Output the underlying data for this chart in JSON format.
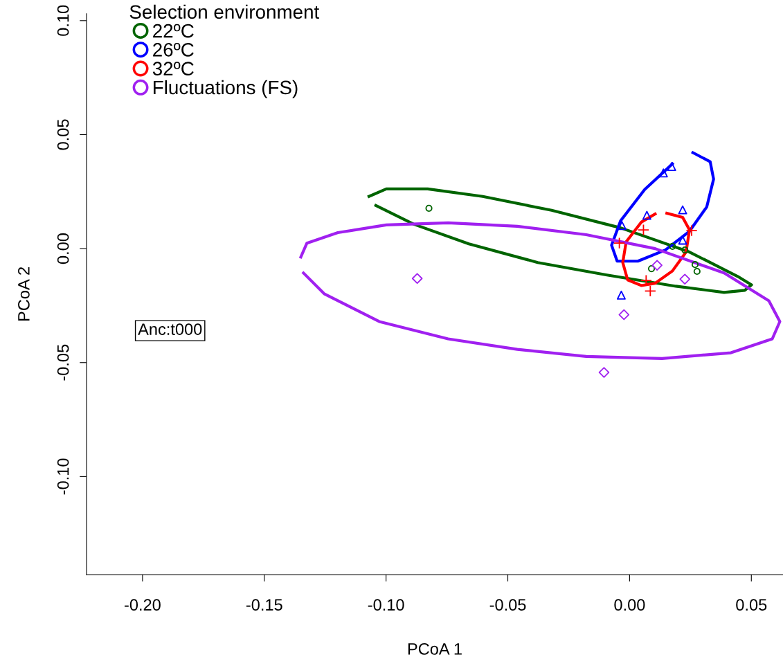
{
  "chart_data": {
    "type": "scatter",
    "xlabel": "PCoA 1",
    "ylabel": "PCoA 2",
    "legend_title": "Selection environment",
    "legend": "top left",
    "grid": false,
    "xlim": [
      -0.223,
      0.063
    ],
    "ylim": [
      -0.143,
      0.103
    ],
    "xticks": [
      {
        "value": -0.2,
        "label": "-0.20"
      },
      {
        "value": -0.15,
        "label": "-0.15"
      },
      {
        "value": -0.1,
        "label": "-0.10"
      },
      {
        "value": -0.05,
        "label": "-0.05"
      },
      {
        "value": 0,
        "label": "0.00"
      },
      {
        "value": 0.05,
        "label": "0.05"
      }
    ],
    "yticks": [
      {
        "value": -0.1,
        "label": "-0.10"
      },
      {
        "value": -0.05,
        "label": "-0.05"
      },
      {
        "value": 0,
        "label": "0.00"
      },
      {
        "value": 0.05,
        "label": "0.05"
      },
      {
        "value": 0.1,
        "label": "0.10"
      }
    ],
    "annotations": [
      "Anc:t000"
    ],
    "series": [
      {
        "name": "22ºC",
        "color": "#006400",
        "marker": "circle",
        "x": [
          -0.0824,
          0.0176,
          0.0227,
          0.0269,
          0.0277,
          0.009
        ],
        "values": [
          0.0177,
          0.001,
          -0.0006,
          -0.007,
          -0.01,
          -0.0088
        ]
      },
      {
        "name": "26ºC",
        "color": "#0000ff",
        "marker": "triangle",
        "x": [
          0.0173,
          0.0139,
          0.0218,
          0.0071,
          -0.0031,
          0.0218,
          -0.0034
        ],
        "values": [
          0.036,
          0.0332,
          0.017,
          0.0146,
          0.0101,
          0.0037,
          -0.0204
        ]
      },
      {
        "name": "32ºC",
        "color": "#ff0000",
        "marker": "cross",
        "x": [
          0.0057,
          0.0255,
          -0.0042,
          0.0068,
          0.0085
        ],
        "values": [
          0.0082,
          0.0079,
          0.0024,
          -0.014,
          -0.0186
        ]
      },
      {
        "name": "Fluctuations (FS)",
        "color": "#a020f0",
        "marker": "diamond",
        "x": [
          0.0113,
          0.0227,
          -0.0023,
          -0.0872,
          -0.0105
        ],
        "values": [
          -0.0073,
          -0.0134,
          -0.029,
          -0.0131,
          -0.0543
        ]
      },
      {
        "type": "line",
        "color": "#006400",
        "x": [
          -0.107,
          -0.0999,
          -0.0829,
          -0.0603,
          -0.032,
          -0.0037,
          0.0246,
          0.0444,
          0.0501,
          0.0473,
          0.0388,
          0.019,
          -0.0093,
          -0.0377,
          -0.066,
          -0.0886,
          -0.1042
        ],
        "values": [
          0.0229,
          0.0262,
          0.0262,
          0.0229,
          0.0168,
          0.0091,
          -0.0015,
          -0.0122,
          -0.0159,
          -0.0183,
          -0.0192,
          -0.0165,
          -0.0116,
          -0.0061,
          0.0021,
          0.0107,
          0.0189
        ]
      },
      {
        "type": "line",
        "color": "#0000ff",
        "x": [
          0.026,
          0.0331,
          0.0345,
          0.0317,
          0.0246,
          0.0147,
          0.0034,
          -0.0051,
          -0.0074,
          -0.0037,
          0.0062,
          0.0176
        ],
        "values": [
          0.0421,
          0.0381,
          0.0305,
          0.0183,
          0.0076,
          -0.0006,
          -0.0055,
          -0.0055,
          0.0015,
          0.0122,
          0.0259,
          0.0372
        ]
      },
      {
        "type": "line",
        "color": "#ff0000",
        "x": [
          0.0153,
          0.0218,
          0.0246,
          0.0232,
          0.0176,
          0.0105,
          0.0048,
          -0.0008,
          -0.0028,
          -0.0014,
          0.0048,
          0.0105
        ],
        "values": [
          0.0155,
          0.0137,
          0.0082,
          -0.0015,
          -0.0098,
          -0.0152,
          -0.0162,
          -0.0137,
          -0.0061,
          0.003,
          0.0116,
          0.0152
        ]
      },
      {
        "type": "line",
        "color": "#a020f0",
        "x": [
          -0.135,
          -0.1325,
          -0.1198,
          -0.0999,
          -0.0745,
          -0.0461,
          -0.0178,
          0.0105,
          0.0388,
          0.0572,
          0.0617,
          0.0586,
          0.0416,
          0.0133,
          -0.0178,
          -0.0461,
          -0.0745,
          -0.1028,
          -0.1254,
          -0.1339
        ],
        "values": [
          -0.0037,
          0.0024,
          0.007,
          0.0104,
          0.0113,
          0.0098,
          0.0061,
          0.0,
          -0.0107,
          -0.0229,
          -0.032,
          -0.0396,
          -0.0457,
          -0.0482,
          -0.0473,
          -0.0442,
          -0.0396,
          -0.032,
          -0.0198,
          -0.0107
        ]
      }
    ]
  }
}
